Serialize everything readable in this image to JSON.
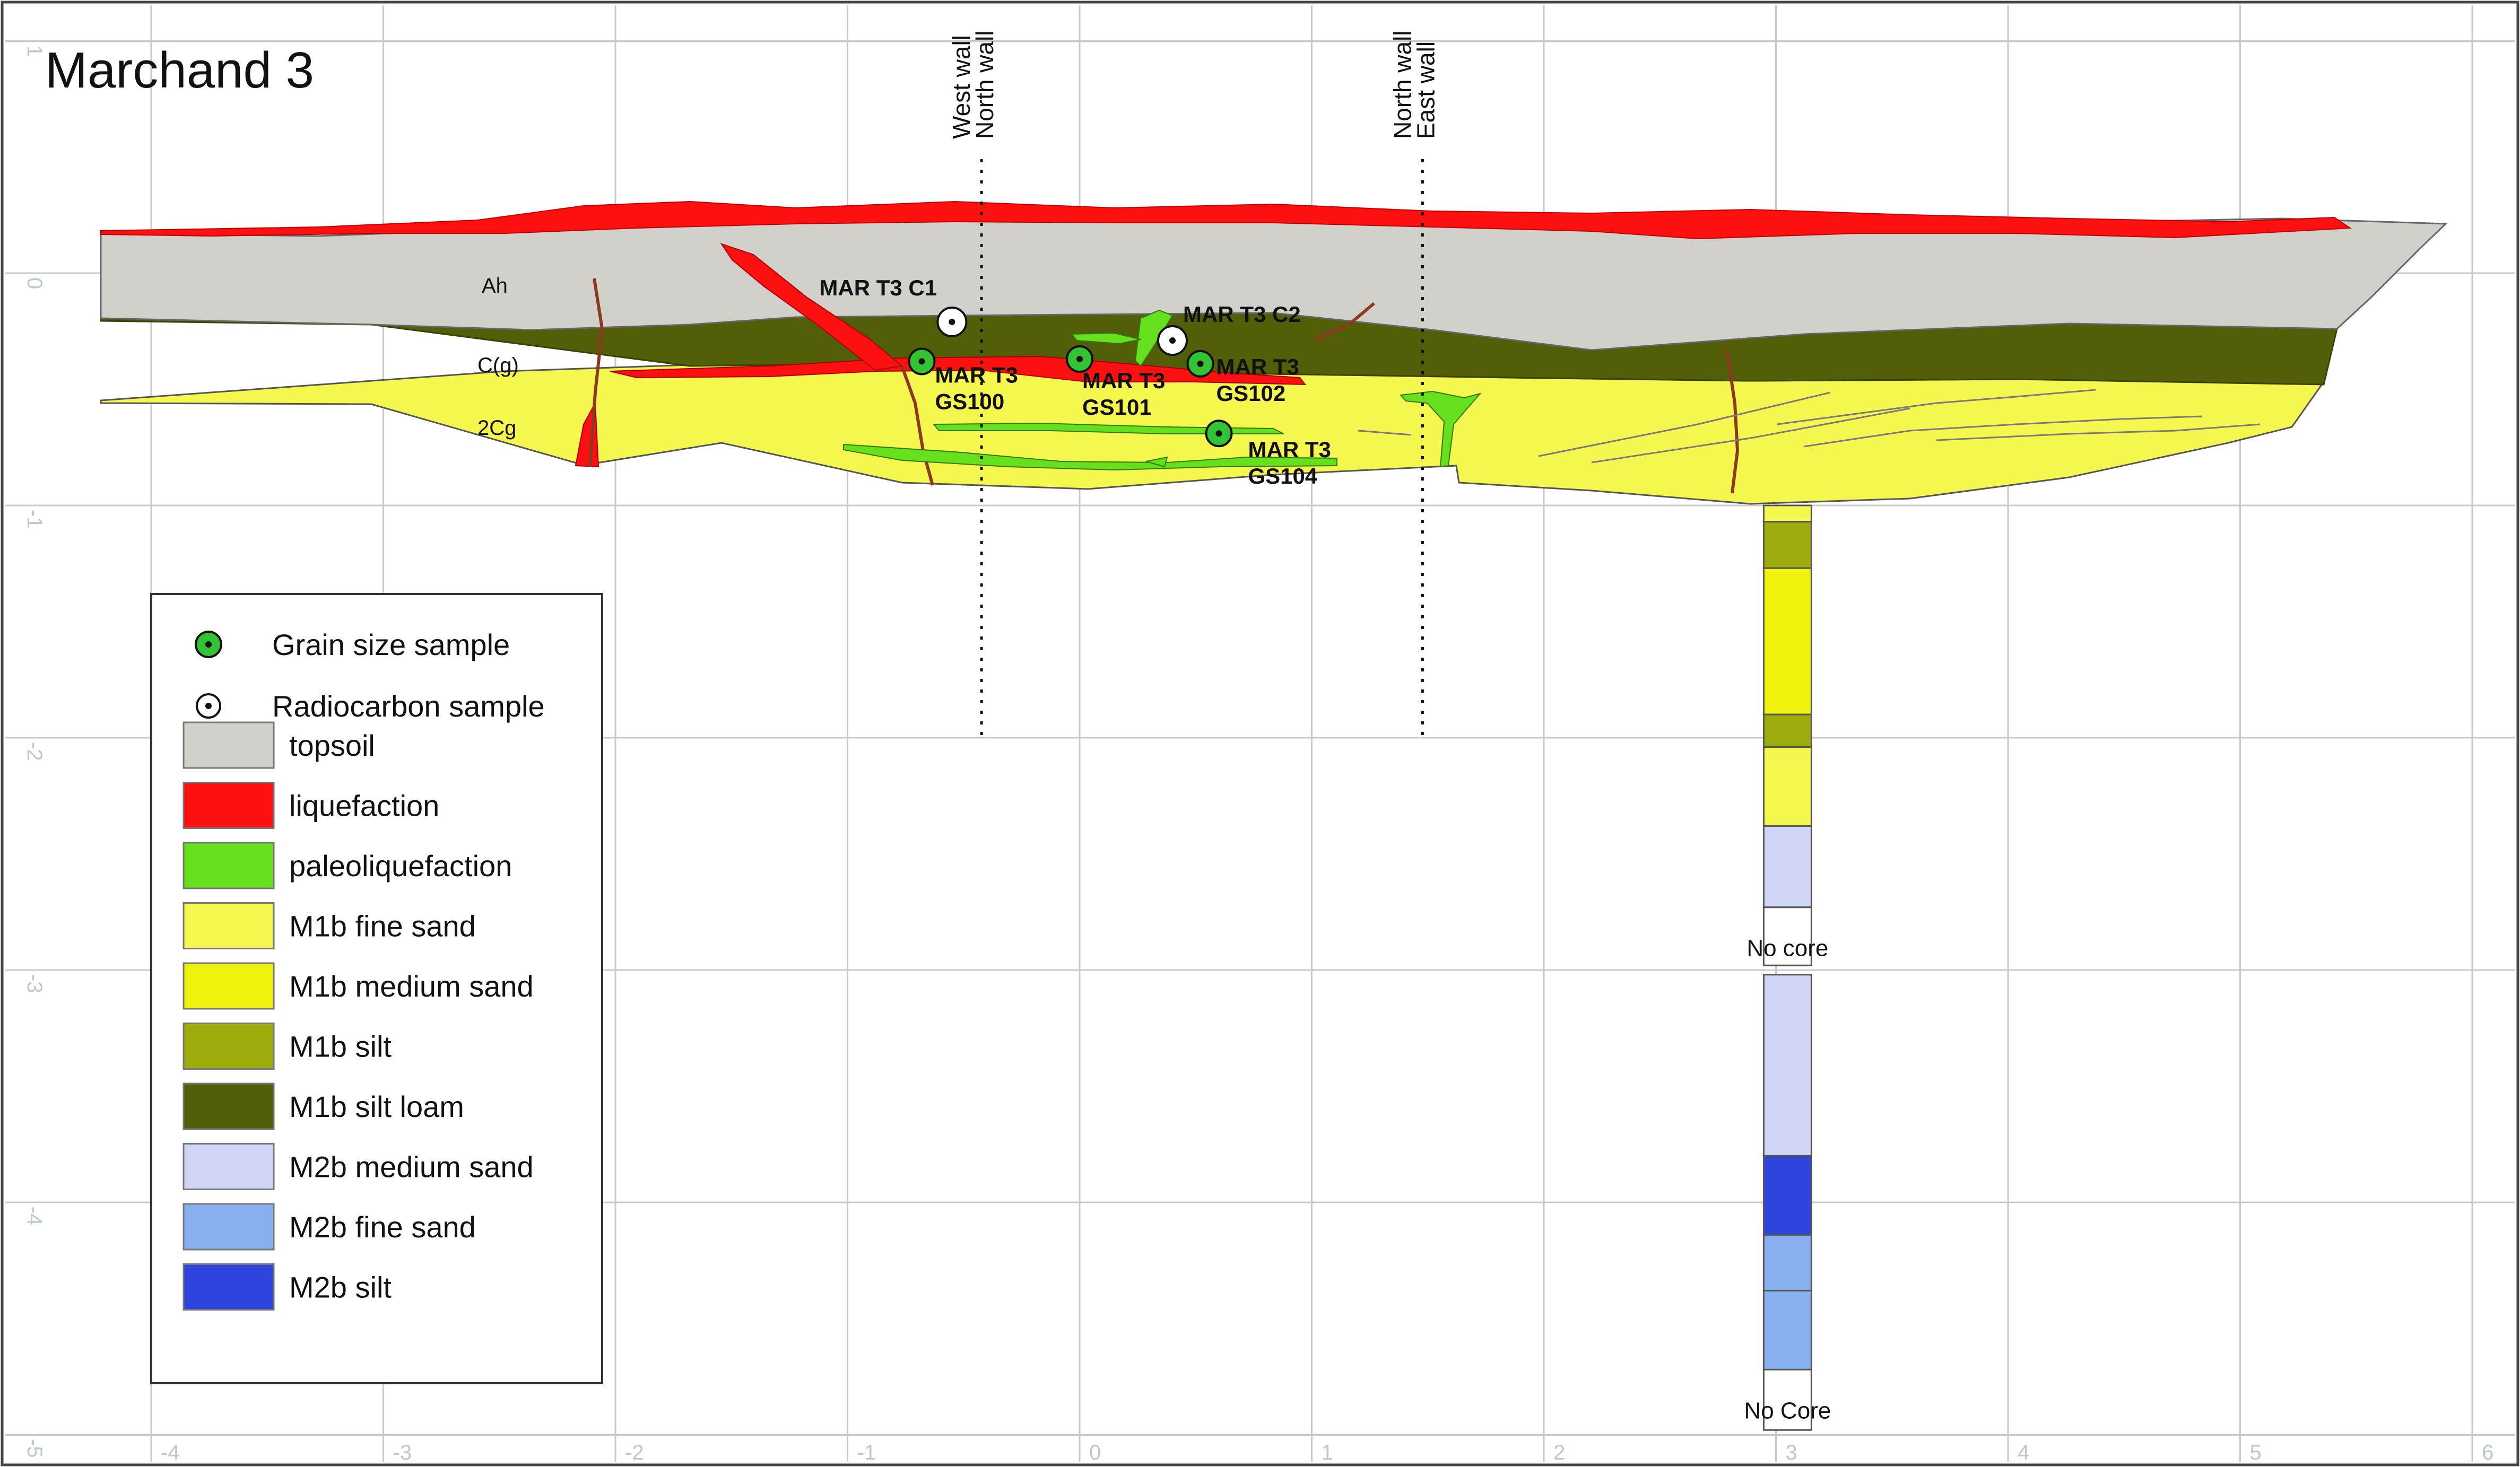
{
  "title": "Marchand 3",
  "axes": {
    "x_ticks": [
      "-4",
      "-3",
      "-2",
      "-1",
      "0",
      "1",
      "2",
      "3",
      "4",
      "5",
      "6"
    ],
    "y_ticks": [
      "1",
      "0",
      "-1",
      "-2",
      "-3",
      "-4",
      "-5"
    ]
  },
  "walls": [
    {
      "labels": [
        "West wall",
        "North wall"
      ],
      "x_m": -0.45
    },
    {
      "labels": [
        "North wall",
        "East wall"
      ],
      "x_m": 1.45
    }
  ],
  "layer_labels": [
    "Ah",
    "C(g)",
    "2Cg"
  ],
  "samples": [
    {
      "type": "radiocarbon",
      "label_lines": [
        "MAR T3 C1"
      ],
      "x_m": -0.55,
      "depth_m": -0.21
    },
    {
      "type": "radiocarbon",
      "label_lines": [
        "MAR T3 C2"
      ],
      "x_m": 0.4,
      "depth_m": -0.29
    },
    {
      "type": "grain",
      "label_lines": [
        "MAR T3",
        "GS100"
      ],
      "x_m": -0.68,
      "depth_m": -0.38
    },
    {
      "type": "grain",
      "label_lines": [
        "MAR T3",
        "GS101"
      ],
      "x_m": 0.0,
      "depth_m": -0.37
    },
    {
      "type": "grain",
      "label_lines": [
        "MAR T3",
        "GS102"
      ],
      "x_m": 0.52,
      "depth_m": -0.39
    },
    {
      "type": "grain",
      "label_lines": [
        "MAR T3",
        "GS104"
      ],
      "x_m": 0.6,
      "depth_m": -0.69
    }
  ],
  "legend": {
    "symbols": [
      {
        "label": "Grain size sample",
        "symbol": "green-dot-icon"
      },
      {
        "label": "Radiocarbon sample",
        "symbol": "white-dot-icon"
      }
    ],
    "units": [
      {
        "label": "topsoil",
        "color": "#d2d0cb"
      },
      {
        "label": "liquefaction",
        "color": "#ff1010"
      },
      {
        "label": "paleoliquefaction",
        "color": "#66e01c"
      },
      {
        "label": "M1b fine sand",
        "color": "#f6f74e"
      },
      {
        "label": "M1b medium sand",
        "color": "#eef20d"
      },
      {
        "label": "M1b silt",
        "color": "#9cac0c"
      },
      {
        "label": "M1b silt loam",
        "color": "#535f08"
      },
      {
        "label": "M2b medium sand",
        "color": "#cfd7f5"
      },
      {
        "label": "M2b fine sand",
        "color": "#88b0ee"
      },
      {
        "label": "M2b silt",
        "color": "#2e44dc"
      }
    ]
  },
  "core": {
    "x_m": 3.05,
    "labels": [
      "No core",
      "No Core"
    ],
    "segments": [
      {
        "top_m": -1.0,
        "bottom_m": -1.07,
        "unit": "M1b fine sand"
      },
      {
        "top_m": -1.07,
        "bottom_m": -1.27,
        "unit": "M1b silt"
      },
      {
        "top_m": -1.27,
        "bottom_m": -1.9,
        "unit": "M1b medium sand"
      },
      {
        "top_m": -1.9,
        "bottom_m": -2.04,
        "unit": "M1b silt"
      },
      {
        "top_m": -2.04,
        "bottom_m": -2.38,
        "unit": "M1b fine sand"
      },
      {
        "top_m": -2.38,
        "bottom_m": -2.73,
        "unit": "M2b medium sand"
      },
      {
        "top_m": -2.73,
        "bottom_m": -2.98,
        "unit": "no core"
      },
      {
        "top_m": -3.02,
        "bottom_m": -3.8,
        "unit": "M2b medium sand"
      },
      {
        "top_m": -3.8,
        "bottom_m": -4.14,
        "unit": "M2b silt"
      },
      {
        "top_m": -4.14,
        "bottom_m": -4.38,
        "unit": "M2b fine sand"
      },
      {
        "top_m": -4.38,
        "bottom_m": -4.72,
        "unit": "M2b fine sand"
      },
      {
        "top_m": -4.72,
        "bottom_m": -4.98,
        "unit": "no core"
      }
    ]
  }
}
